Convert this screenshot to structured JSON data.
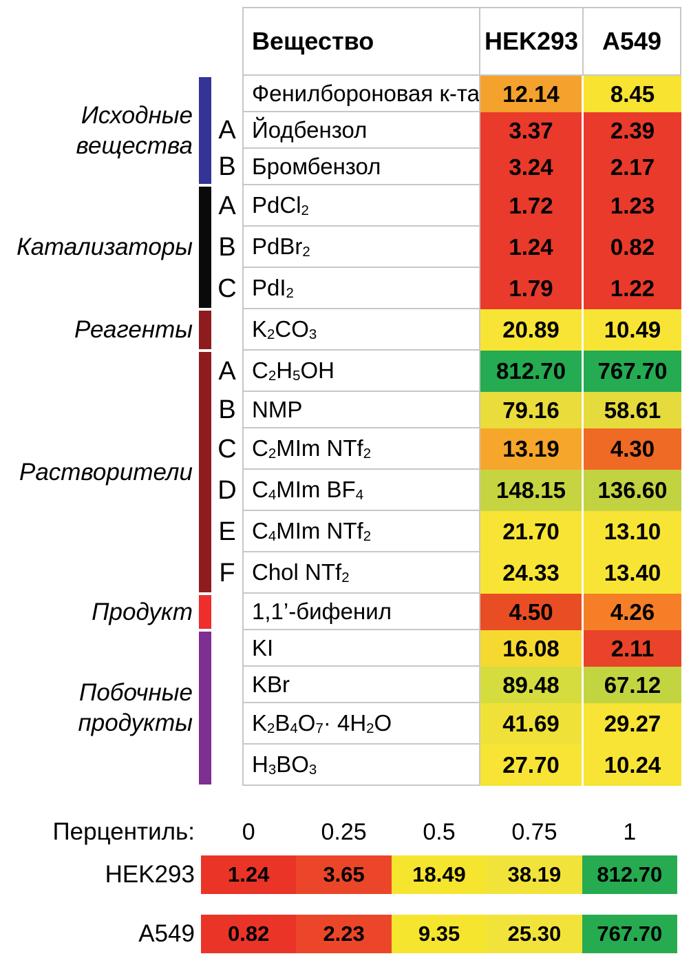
{
  "figure": {
    "table": {
      "columns": {
        "substance": "Вещество",
        "hek293": "HEK293",
        "a549": "A549"
      },
      "rows": [
        {
          "name": "Фенилбороновая к-та",
          "letter": "",
          "hek": "12.14",
          "hek_color": "#F5A12D",
          "a549": "8.45",
          "a549_color": "#F7E330"
        },
        {
          "name": "Йодбензол",
          "letter": "A",
          "hek": "3.37",
          "hek_color": "#E93A2B",
          "a549": "2.39",
          "a549_color": "#E93A2B"
        },
        {
          "name": "Бромбензол",
          "letter": "B",
          "hek": "3.24",
          "hek_color": "#E93A2B",
          "a549": "2.17",
          "a549_color": "#E93A2B"
        },
        {
          "name": "PdCl~2~",
          "letter": "A",
          "hek": "1.72",
          "hek_color": "#E93A2B",
          "a549": "1.23",
          "a549_color": "#E93A2B"
        },
        {
          "name": "PdBr~2~",
          "letter": "B",
          "hek": "1.24",
          "hek_color": "#E93A2B",
          "a549": "0.82",
          "a549_color": "#E93A2B"
        },
        {
          "name": "PdI~2~",
          "letter": "C",
          "hek": "1.79",
          "hek_color": "#E93A2B",
          "a549": "1.22",
          "a549_color": "#E93A2B"
        },
        {
          "name": "K~2~CO~3~",
          "letter": "",
          "hek": "20.89",
          "hek_color": "#F8E435",
          "a549": "10.49",
          "a549_color": "#F8E435"
        },
        {
          "name": "C~2~H~5~OH",
          "letter": "A",
          "hek": "812.70",
          "hek_color": "#25AB51",
          "a549": "767.70",
          "a549_color": "#25AB51"
        },
        {
          "name": "NMP",
          "letter": "B",
          "hek": "79.16",
          "hek_color": "#E9DC3B",
          "a549": "58.61",
          "a549_color": "#E6DB3C"
        },
        {
          "name": "C~2~MIm NTf~2~",
          "letter": "C",
          "hek": "13.19",
          "hek_color": "#F7A62C",
          "a549": "4.30",
          "a549_color": "#EF6A24"
        },
        {
          "name": "C~4~MIm BF~4~",
          "letter": "D",
          "hek": "148.15",
          "hek_color": "#C6D441",
          "a549": "136.60",
          "a549_color": "#C2D342"
        },
        {
          "name": "C~4~MIm NTf~2~",
          "letter": "E",
          "hek": "21.70",
          "hek_color": "#F8E435",
          "a549": "13.10",
          "a549_color": "#F8E435"
        },
        {
          "name": "Chol NTf~2~",
          "letter": "F",
          "hek": "24.33",
          "hek_color": "#F8E435",
          "a549": "13.40",
          "a549_color": "#F8E435"
        },
        {
          "name": "1,1’-бифенил",
          "letter": "",
          "hek": "4.50",
          "hek_color": "#E94D24",
          "a549": "4.26",
          "a549_color": "#F57E27"
        },
        {
          "name": "KI",
          "letter": "",
          "hek": "16.08",
          "hek_color": "#F6D930",
          "a549": "2.11",
          "a549_color": "#E9432A"
        },
        {
          "name": "KBr",
          "letter": "",
          "hek": "89.48",
          "hek_color": "#D5DC3E",
          "a549": "67.12",
          "a549_color": "#C3D441"
        },
        {
          "name": "K~2~B~4~O~7~ · 4H~2~O",
          "letter": "",
          "hek": "41.69",
          "hek_color": "#F0E139",
          "a549": "29.27",
          "a549_color": "#F7E434"
        },
        {
          "name": "H~3~BO~3~",
          "letter": "",
          "hek": "27.70",
          "hek_color": "#F7E434",
          "a549": "10.24",
          "a549_color": "#F7E434"
        }
      ]
    },
    "groups": [
      {
        "label_lines": [
          "Исходные",
          "вещества"
        ],
        "bar_color": "#343397",
        "start": 0,
        "end": 2
      },
      {
        "label_lines": [
          "Катализаторы"
        ],
        "bar_color": "#0A0A0A",
        "start": 3,
        "end": 5
      },
      {
        "label_lines": [
          "Реагенты"
        ],
        "bar_color": "#8E1B1E",
        "start": 6,
        "end": 6
      },
      {
        "label_lines": [
          "Растворители"
        ],
        "bar_color": "#8E1B1E",
        "start": 7,
        "end": 12
      },
      {
        "label_lines": [
          "Продукт"
        ],
        "bar_color": "#EE2D2D",
        "start": 13,
        "end": 13
      },
      {
        "label_lines": [
          "Побочные",
          "продукты"
        ],
        "bar_color": "#7F2F91",
        "start": 14,
        "end": 17
      }
    ],
    "legend": {
      "title": "Перцентиль:",
      "ticks": [
        "0",
        "0.25",
        "0.5",
        "0.75",
        "1"
      ],
      "rows": [
        {
          "label": "HEK293",
          "cells": [
            {
              "v": "1.24",
              "c": "#EA3428"
            },
            {
              "v": "3.65",
              "c": "#EB4629"
            },
            {
              "v": "18.49",
              "c": "#F5E52F"
            },
            {
              "v": "38.19",
              "c": "#F2E33B"
            },
            {
              "v": "812.70",
              "c": "#26AB51"
            }
          ]
        },
        {
          "label": "A549",
          "cells": [
            {
              "v": "0.82",
              "c": "#EA3428"
            },
            {
              "v": "2.23",
              "c": "#EB4629"
            },
            {
              "v": "9.35",
              "c": "#F5E52F"
            },
            {
              "v": "25.30",
              "c": "#F2E33B"
            },
            {
              "v": "767.70",
              "c": "#26AB51"
            }
          ]
        }
      ]
    }
  },
  "chart_data": {
    "type": "heatmap",
    "columns": [
      "HEK293",
      "A549"
    ],
    "rows": [
      {
        "group": "Исходные вещества",
        "variant": "",
        "substance": "Фенилбороновая к-та",
        "HEK293": 12.14,
        "A549": 8.45
      },
      {
        "group": "Исходные вещества",
        "variant": "A",
        "substance": "Йодбензол",
        "HEK293": 3.37,
        "A549": 2.39
      },
      {
        "group": "Исходные вещества",
        "variant": "B",
        "substance": "Бромбензол",
        "HEK293": 3.24,
        "A549": 2.17
      },
      {
        "group": "Катализаторы",
        "variant": "A",
        "substance": "PdCl2",
        "HEK293": 1.72,
        "A549": 1.23
      },
      {
        "group": "Катализаторы",
        "variant": "B",
        "substance": "PdBr2",
        "HEK293": 1.24,
        "A549": 0.82
      },
      {
        "group": "Катализаторы",
        "variant": "C",
        "substance": "PdI2",
        "HEK293": 1.79,
        "A549": 1.22
      },
      {
        "group": "Реагенты",
        "variant": "",
        "substance": "K2CO3",
        "HEK293": 20.89,
        "A549": 10.49
      },
      {
        "group": "Растворители",
        "variant": "A",
        "substance": "C2H5OH",
        "HEK293": 812.7,
        "A549": 767.7
      },
      {
        "group": "Растворители",
        "variant": "B",
        "substance": "NMP",
        "HEK293": 79.16,
        "A549": 58.61
      },
      {
        "group": "Растворители",
        "variant": "C",
        "substance": "C2MIm NTf2",
        "HEK293": 13.19,
        "A549": 4.3
      },
      {
        "group": "Растворители",
        "variant": "D",
        "substance": "C4MIm BF4",
        "HEK293": 148.15,
        "A549": 136.6
      },
      {
        "group": "Растворители",
        "variant": "E",
        "substance": "C4MIm NTf2",
        "HEK293": 21.7,
        "A549": 13.1
      },
      {
        "group": "Растворители",
        "variant": "F",
        "substance": "Chol NTf2",
        "HEK293": 24.33,
        "A549": 13.4
      },
      {
        "group": "Продукт",
        "variant": "",
        "substance": "1,1’-бифенил",
        "HEK293": 4.5,
        "A549": 4.26
      },
      {
        "group": "Побочные продукты",
        "variant": "",
        "substance": "KI",
        "HEK293": 16.08,
        "A549": 2.11
      },
      {
        "group": "Побочные продукты",
        "variant": "",
        "substance": "KBr",
        "HEK293": 89.48,
        "A549": 67.12
      },
      {
        "group": "Побочные продукты",
        "variant": "",
        "substance": "K2B4O7·4H2O",
        "HEK293": 41.69,
        "A549": 29.27
      },
      {
        "group": "Побочные продукты",
        "variant": "",
        "substance": "H3BO3",
        "HEK293": 27.7,
        "A549": 10.24
      }
    ],
    "percentile_scale": {
      "percentiles": [
        0,
        0.25,
        0.5,
        0.75,
        1
      ],
      "HEK293": [
        1.24,
        3.65,
        18.49,
        38.19,
        812.7
      ],
      "A549": [
        0.82,
        2.23,
        9.35,
        25.3,
        767.7
      ]
    },
    "legend_position": "bottom"
  }
}
